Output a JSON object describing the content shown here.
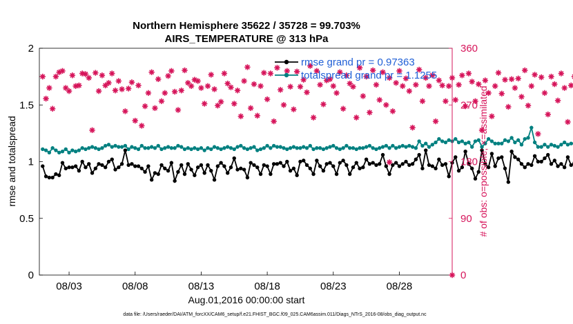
{
  "chart_data": {
    "type": "line",
    "title": "Northern Hemisphere 35622 / 35728 = 99.703%",
    "subtitle": "AIRS_TEMPERATURE @ 313 hPa",
    "xlabel": "Aug.01,2016 00:00:00 start",
    "ylabel": "rmse and totalspread",
    "y2label": "# of obs: o=possible; ×=assimilated",
    "footnote": "data file: /Users/raeder/DAI/ATM_forcXX/CAM6_setup/f.e21.FHIST_BGC.f09_025.CAM6assim.011/Diags_NTrS_2016-08/obs_diag_output.nc",
    "xlim": [
      0.75,
      32.0
    ],
    "ylim": [
      0,
      2
    ],
    "y2lim": [
      0,
      360
    ],
    "xticks": [
      3,
      8,
      13,
      18,
      23,
      28
    ],
    "xtick_labels": [
      "08/03",
      "08/08",
      "08/13",
      "08/18",
      "08/23",
      "08/28"
    ],
    "yticks": [
      0,
      0.5,
      1,
      1.5,
      2
    ],
    "ytick_labels": [
      "0",
      "0.5",
      "1",
      "1.5",
      "2"
    ],
    "y2ticks": [
      0,
      90,
      180,
      270,
      360
    ],
    "y2tick_labels": [
      "0",
      "90",
      "180",
      "270",
      "360"
    ],
    "grid": false,
    "legend_position": "top-right",
    "colors": {
      "rmse": "#000000",
      "spread": "#008080",
      "obs": "#d6145a",
      "legend_text": "#1f5fd6"
    },
    "series": [
      {
        "name": "rmse grand pr = 0.97363",
        "axis": "left",
        "x_start": 1.0,
        "x_step": 0.25,
        "values": [
          0.96,
          0.87,
          0.86,
          0.86,
          0.89,
          0.88,
          0.99,
          0.94,
          0.95,
          0.95,
          0.96,
          0.92,
          1.0,
          0.95,
          0.98,
          0.9,
          0.94,
          0.98,
          0.97,
          0.95,
          1.0,
          1.02,
          0.93,
          0.95,
          0.98,
          1.1,
          0.97,
          0.98,
          0.96,
          0.96,
          0.94,
          0.91,
          0.96,
          0.84,
          0.9,
          0.89,
          0.97,
          0.94,
          0.92,
          0.99,
          0.83,
          0.91,
          0.97,
          0.89,
          0.98,
          0.93,
          0.88,
          0.95,
          0.97,
          0.9,
          0.97,
          0.92,
          0.84,
          0.96,
          0.99,
          0.96,
          0.9,
          0.95,
          1.03,
          0.93,
          0.94,
          0.93,
          0.86,
          0.99,
          0.97,
          0.95,
          0.89,
          0.97,
          0.96,
          0.89,
          0.98,
          0.98,
          0.99,
          0.96,
          1.0,
          0.92,
          0.94,
          0.88,
          1.0,
          1.01,
          0.97,
          0.94,
          0.89,
          1.01,
          0.96,
          0.92,
          0.98,
          0.99,
          0.96,
          0.89,
          0.99,
          1.01,
          0.97,
          0.89,
          0.95,
          0.99,
          0.94,
          0.95,
          1.02,
          0.98,
          0.99,
          0.97,
          0.98,
          1.06,
          0.96,
          0.89,
          0.97,
          0.99,
          0.96,
          0.98,
          1.0,
          0.97,
          0.98,
          1.02,
          1.06,
          0.94,
          1.1,
          0.97,
          0.96,
          0.94,
          1.02,
          0.97,
          0.98,
          0.87,
          0.99,
          1.04,
          0.92,
          0.95,
          1.09,
          0.98,
          0.94,
          0.85,
          0.91,
          1.1,
          0.98,
          0.95,
          1.07,
          0.96,
          1.03,
          1.04,
          0.94,
          0.82,
          1.09,
          1.04,
          1.02,
          0.98,
          0.95,
          0.98,
          0.97,
          1.05,
          1.0,
          1.0,
          1.03,
          1.06,
          0.98,
          1.01,
          0.96,
          0.98,
          0.95,
          1.04,
          0.97,
          0.99,
          0.97,
          0.95,
          1.01,
          0.96,
          0.97,
          0.97,
          0.98
        ]
      },
      {
        "name": "totalspread grand pr = 1.1255",
        "axis": "left",
        "x_start": 1.0,
        "x_step": 0.25,
        "values": [
          1.11,
          1.1,
          1.08,
          1.12,
          1.1,
          1.08,
          1.09,
          1.11,
          1.08,
          1.1,
          1.09,
          1.1,
          1.12,
          1.11,
          1.12,
          1.13,
          1.12,
          1.11,
          1.12,
          1.14,
          1.15,
          1.13,
          1.14,
          1.13,
          1.13,
          1.14,
          1.11,
          1.13,
          1.12,
          1.11,
          1.14,
          1.12,
          1.12,
          1.13,
          1.12,
          1.14,
          1.11,
          1.12,
          1.13,
          1.12,
          1.12,
          1.14,
          1.13,
          1.11,
          1.12,
          1.11,
          1.12,
          1.11,
          1.12,
          1.1,
          1.12,
          1.11,
          1.13,
          1.12,
          1.11,
          1.12,
          1.13,
          1.12,
          1.11,
          1.13,
          1.14,
          1.12,
          1.11,
          1.12,
          1.13,
          1.1,
          1.11,
          1.12,
          1.14,
          1.12,
          1.14,
          1.13,
          1.13,
          1.12,
          1.11,
          1.12,
          1.13,
          1.12,
          1.12,
          1.13,
          1.12,
          1.14,
          1.11,
          1.12,
          1.12,
          1.11,
          1.12,
          1.13,
          1.14,
          1.12,
          1.11,
          1.12,
          1.14,
          1.12,
          1.12,
          1.11,
          1.12,
          1.12,
          1.13,
          1.14,
          1.12,
          1.11,
          1.12,
          1.13,
          1.14,
          1.12,
          1.14,
          1.12,
          1.13,
          1.14,
          1.13,
          1.14,
          1.13,
          1.12,
          1.18,
          1.14,
          1.16,
          1.13,
          1.15,
          1.17,
          1.2,
          1.18,
          1.17,
          1.19,
          1.18,
          1.2,
          1.17,
          1.18,
          1.16,
          1.17,
          1.13,
          1.18,
          1.19,
          1.13,
          1.16,
          1.2,
          1.18,
          1.16,
          1.16,
          1.16,
          1.19,
          1.18,
          1.21,
          1.17,
          1.19,
          1.15,
          1.2,
          1.21,
          1.3,
          1.17,
          1.13,
          1.13,
          1.15,
          1.13,
          1.15,
          1.14,
          1.13,
          1.15,
          1.17,
          1.15,
          1.16,
          1.16,
          1.15,
          1.17,
          1.16,
          1.2,
          1.22,
          1.18,
          1.2,
          1.21,
          1.19,
          1.22,
          1.23,
          1.2,
          1.13
        ]
      },
      {
        "name": "obs possible/assimilated",
        "axis": "right",
        "x_start": 1.0,
        "x_step": 0.25,
        "values": [
          315,
          280,
          297,
          264,
          315,
          322,
          324,
          297,
          292,
          317,
          300,
          301,
          320,
          319,
          313,
          230,
          321,
          292,
          317,
          301,
          305,
          320,
          293,
          308,
          295,
          260,
          296,
          306,
          245,
          301,
          237,
          268,
          289,
          322,
          265,
          311,
          276,
          289,
          316,
          324,
          291,
          262,
          293,
          325,
          305,
          300,
          310,
          308,
          297,
          272,
          300,
          318,
          295,
          269,
          275,
          320,
          304,
          298,
          272,
          293,
          252,
          308,
          330,
          265,
          303,
          253,
          300,
          321,
          279,
          320,
          244,
          329,
          294,
          270,
          324,
          299,
          263,
          323,
          299,
          310,
          290,
          332,
          250,
          324,
          302,
          271,
          309,
          311,
          300,
          289,
          322,
          264,
          317,
          304,
          299,
          250,
          329,
          284,
          315,
          258,
          325,
          302,
          278,
          322,
          270,
          313,
          260,
          305,
          324,
          300,
          312,
          292,
          234,
          302,
          326,
          276,
          313,
          300,
          317,
          244,
          309,
          301,
          276,
          300,
          313,
          278,
          302,
          317,
          268,
          320,
          307,
          276,
          303,
          230,
          309,
          289,
          252,
          300,
          321,
          288,
          310,
          267,
          311,
          297,
          312,
          283,
          325,
          269,
          300,
          318,
          224,
          314,
          289,
          255,
          315,
          303,
          277,
          320,
          297,
          243,
          301,
          315,
          290,
          302,
          271,
          317,
          275,
          301,
          252,
          320,
          220,
          306,
          283,
          308,
          301
        ]
      }
    ],
    "annotation_points": [
      {
        "series": "obs possible/assimilated",
        "x": 27.25,
        "y": 179
      },
      {
        "series": "obs possible/assimilated",
        "x": 32.0,
        "y": 0
      }
    ]
  }
}
